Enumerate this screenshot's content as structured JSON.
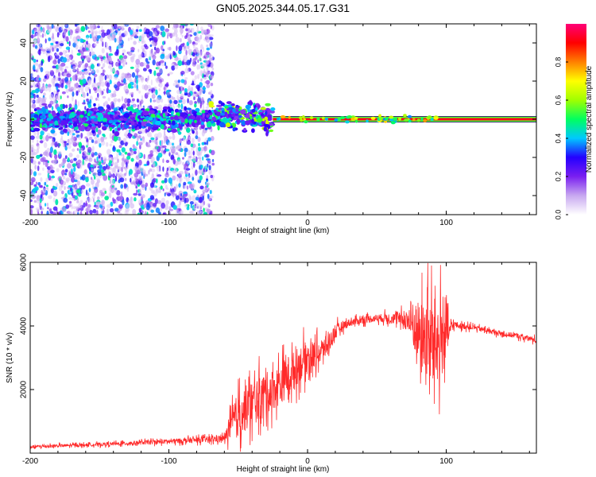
{
  "chart_data": [
    {
      "type": "heatmap",
      "title": "GN05.2025.344.05.17.G31",
      "xlabel": "Height of straight line (km)",
      "ylabel": "Frequency (Hz)",
      "xlim": [
        -200,
        165
      ],
      "ylim": [
        -50,
        50
      ],
      "xticks": [
        -200,
        -100,
        0,
        100
      ],
      "yticks": [
        -40,
        -20,
        0,
        20,
        40
      ],
      "xtick_labels": [
        "-200",
        "-100",
        "0",
        "100"
      ],
      "ytick_labels": [
        "-40",
        "-20",
        "0",
        "20",
        "40"
      ],
      "colorbar": {
        "label": "Normalized spectral amplitude",
        "range": [
          0,
          1
        ],
        "ticks": [
          0,
          0.2,
          0.4,
          0.6,
          0.8
        ],
        "tick_labels": [
          "0.0",
          "0.2",
          "0.4",
          "0.6",
          "0.8"
        ],
        "colors": [
          "#ffffff",
          "#c8a8f0",
          "#7a1ff0",
          "#2400ff",
          "#00c8ff",
          "#00ff60",
          "#a0ff00",
          "#ffff00",
          "#ff8000",
          "#ff0000",
          "#ff0078"
        ]
      },
      "regions": [
        {
          "name": "noise-scatter",
          "x_from": -200,
          "x_to": -68,
          "freq_from": -50,
          "freq_to": 50
        },
        {
          "name": "broadening-carrier",
          "x_from": -200,
          "x_to": -25,
          "freq_center": 0,
          "freq_halfwidth": 8
        },
        {
          "name": "coherent-carrier",
          "x_from": -25,
          "x_to": 165,
          "freq_center": 0,
          "peak_amplitude": 1.0
        }
      ]
    },
    {
      "type": "line",
      "xlabel": "Height of straight line (km)",
      "ylabel": "SNR (10 * v/v)",
      "xlim": [
        -200,
        165
      ],
      "ylim": [
        0,
        6000
      ],
      "xticks": [
        -200,
        -100,
        0,
        100
      ],
      "yticks": [
        2000,
        4000,
        6000
      ],
      "xtick_labels": [
        "-200",
        "-100",
        "0",
        "100"
      ],
      "ytick_labels": [
        "2000",
        "4000",
        "6000"
      ],
      "color": "#ff2a2a",
      "series": [
        {
          "name": "SNR",
          "x": [
            -200,
            -180,
            -160,
            -140,
            -120,
            -100,
            -80,
            -60,
            -52,
            -45,
            -40,
            -35,
            -30,
            -25,
            -20,
            -15,
            -10,
            -5,
            0,
            5,
            10,
            15,
            20,
            25,
            30,
            35,
            40,
            50,
            60,
            70,
            75,
            80,
            85,
            90,
            95,
            100,
            102,
            105,
            110,
            120,
            130,
            140,
            150,
            165
          ],
          "y": [
            200,
            230,
            260,
            290,
            330,
            370,
            410,
            460,
            1100,
            1400,
            1550,
            1700,
            1900,
            2000,
            2150,
            2400,
            2600,
            2850,
            3000,
            3100,
            3200,
            3450,
            3800,
            4000,
            4100,
            4150,
            4200,
            4250,
            4250,
            4200,
            4100,
            3800,
            3600,
            3500,
            3500,
            3900,
            3800,
            4050,
            4000,
            3950,
            3850,
            3750,
            3700,
            3550
          ],
          "noise": [
            60,
            60,
            60,
            70,
            80,
            90,
            110,
            140,
            800,
            900,
            900,
            850,
            800,
            800,
            800,
            800,
            750,
            700,
            650,
            550,
            450,
            400,
            300,
            200,
            150,
            150,
            150,
            150,
            200,
            300,
            900,
            1200,
            1500,
            1800,
            1600,
            1500,
            300,
            150,
            120,
            100,
            100,
            100,
            100,
            120
          ]
        }
      ]
    }
  ]
}
